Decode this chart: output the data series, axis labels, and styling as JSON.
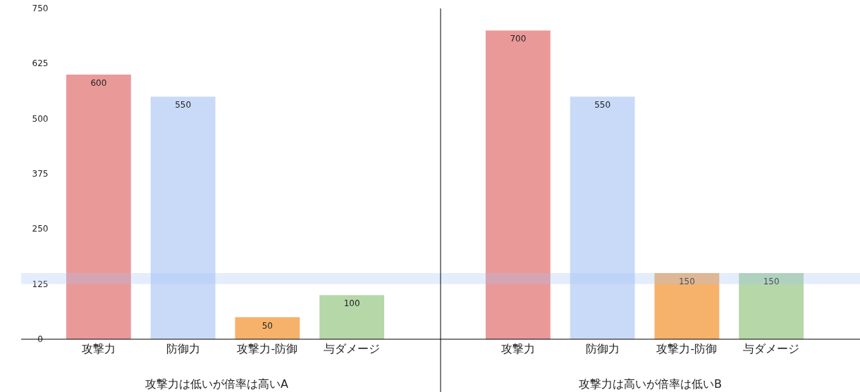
{
  "chart_data": [
    {
      "type": "bar",
      "xlabel": "攻撃力は低いが倍率は高いA",
      "categories": [
        "攻撃力",
        "防御力",
        "攻撃力-防御",
        "与ダメージ"
      ],
      "values": [
        600,
        550,
        50,
        100
      ],
      "colors": [
        "#ea9999",
        "#c9daf8",
        "#f6b26b",
        "#b6d7a8"
      ],
      "ylim": [
        0,
        750
      ],
      "yticks": [
        0,
        125,
        250,
        375,
        500,
        625,
        750
      ],
      "data_labels": true,
      "grid": false,
      "bands": [
        {
          "axis": "y",
          "from": 125,
          "to": 150,
          "color": "#a4c2f4"
        }
      ]
    },
    {
      "type": "bar",
      "xlabel": "攻撃力は高いが倍率は低いB",
      "categories": [
        "攻撃力",
        "防御力",
        "攻撃力-防御",
        "与ダメージ"
      ],
      "values": [
        700,
        550,
        150,
        150
      ],
      "colors": [
        "#ea9999",
        "#c9daf8",
        "#f6b26b",
        "#b6d7a8"
      ],
      "ylim": [
        0,
        750
      ],
      "data_labels": true,
      "grid": false,
      "tick_labels": "x",
      "bands": [
        {
          "axis": "y",
          "from": 125,
          "to": 150,
          "color": "#a4c2f4"
        }
      ]
    }
  ]
}
